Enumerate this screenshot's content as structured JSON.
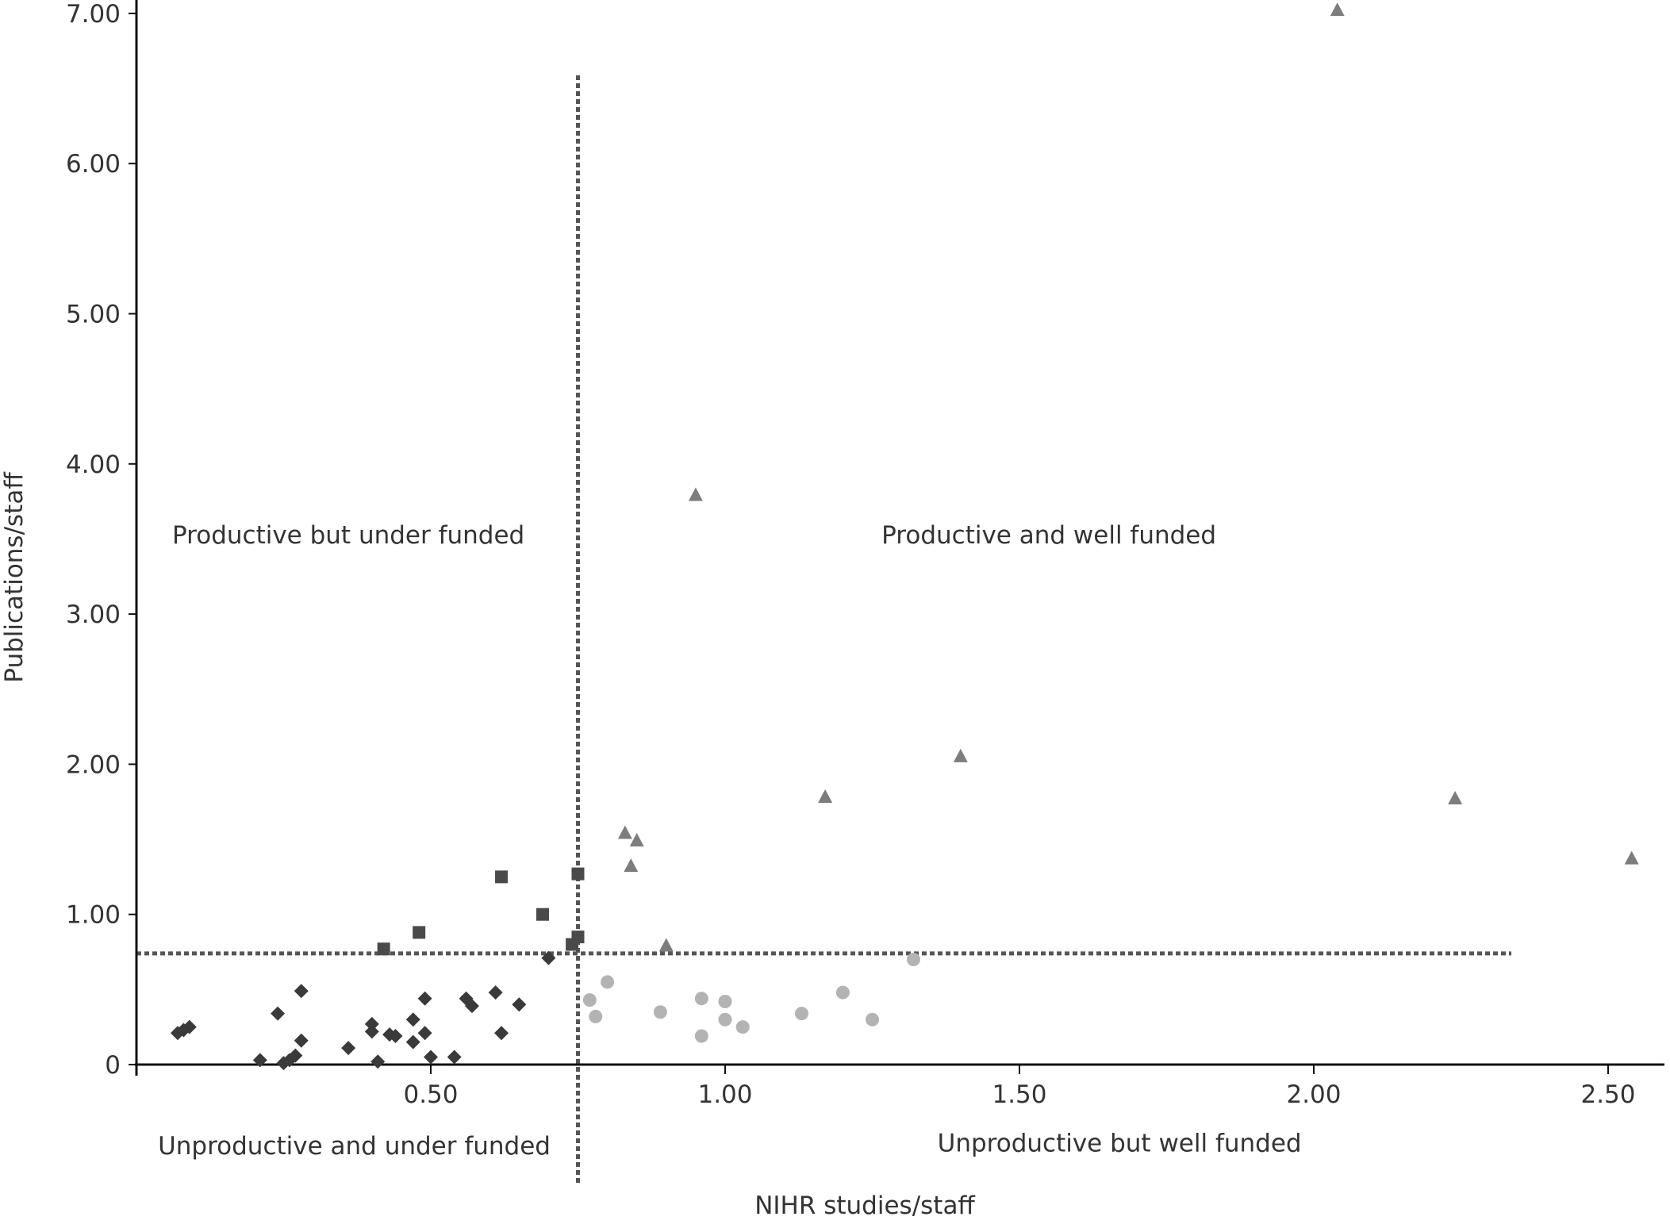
{
  "chart_data": {
    "type": "scatter",
    "title": "",
    "xlabel": "NIHR studies/staff",
    "ylabel": "Publications/staff",
    "xlim": [
      0,
      2.6
    ],
    "ylim": [
      0,
      7
    ],
    "x_ticks": [
      {
        "value": 0.5,
        "label": "0.50"
      },
      {
        "value": 1.0,
        "label": "1.00"
      },
      {
        "value": 1.5,
        "label": "1.50"
      },
      {
        "value": 2.0,
        "label": "2.00"
      },
      {
        "value": 2.5,
        "label": "2.50"
      }
    ],
    "y_ticks": [
      {
        "value": 0,
        "label": "0"
      },
      {
        "value": 1,
        "label": "1.00"
      },
      {
        "value": 2,
        "label": "2.00"
      },
      {
        "value": 3,
        "label": "3.00"
      },
      {
        "value": 4,
        "label": "4.00"
      },
      {
        "value": 5,
        "label": "5.00"
      },
      {
        "value": 6,
        "label": "6.00"
      },
      {
        "value": 7,
        "label": "7.00"
      }
    ],
    "reference_lines": {
      "x": 0.75,
      "y": 0.74
    },
    "quadrant_labels": [
      {
        "text": "Productive but under funded",
        "x": 0.36,
        "y": 3.53
      },
      {
        "text": "Productive and well funded",
        "x": 1.55,
        "y": 3.53
      },
      {
        "text": "Unproductive and under funded",
        "x": 0.37,
        "y": -0.54
      },
      {
        "text": "Unproductive but well funded",
        "x": 1.67,
        "y": -0.52
      }
    ],
    "grid": false,
    "legend": "none",
    "series": [
      {
        "marker": "diamond",
        "color": "#3a3a3a",
        "points": [
          [
            0.07,
            0.21
          ],
          [
            0.08,
            0.23
          ],
          [
            0.09,
            0.25
          ],
          [
            0.21,
            0.03
          ],
          [
            0.24,
            0.34
          ],
          [
            0.25,
            0.01
          ],
          [
            0.26,
            0.03
          ],
          [
            0.27,
            0.06
          ],
          [
            0.28,
            0.16
          ],
          [
            0.28,
            0.49
          ],
          [
            0.36,
            0.11
          ],
          [
            0.4,
            0.27
          ],
          [
            0.4,
            0.22
          ],
          [
            0.41,
            0.02
          ],
          [
            0.43,
            0.2
          ],
          [
            0.44,
            0.19
          ],
          [
            0.47,
            0.3
          ],
          [
            0.47,
            0.15
          ],
          [
            0.49,
            0.21
          ],
          [
            0.49,
            0.44
          ],
          [
            0.5,
            0.05
          ],
          [
            0.54,
            0.05
          ],
          [
            0.56,
            0.44
          ],
          [
            0.57,
            0.39
          ],
          [
            0.61,
            0.48
          ],
          [
            0.62,
            0.21
          ],
          [
            0.65,
            0.4
          ],
          [
            0.7,
            0.71
          ]
        ]
      },
      {
        "marker": "square",
        "color": "#4a4a4a",
        "points": [
          [
            0.42,
            0.77
          ],
          [
            0.48,
            0.88
          ],
          [
            0.62,
            1.25
          ],
          [
            0.69,
            1.0
          ],
          [
            0.74,
            0.8
          ],
          [
            0.75,
            0.85
          ],
          [
            0.75,
            1.27
          ]
        ]
      },
      {
        "marker": "triangle",
        "color": "#7d7d7d",
        "points": [
          [
            0.83,
            1.54
          ],
          [
            0.84,
            1.32
          ],
          [
            0.85,
            1.49
          ],
          [
            0.9,
            0.79
          ],
          [
            0.95,
            3.79
          ],
          [
            1.17,
            1.78
          ],
          [
            1.4,
            2.05
          ],
          [
            2.04,
            7.02
          ],
          [
            2.24,
            1.77
          ],
          [
            2.54,
            1.37
          ]
        ]
      },
      {
        "marker": "circle",
        "color": "#b3b3b3",
        "points": [
          [
            0.77,
            0.43
          ],
          [
            0.78,
            0.32
          ],
          [
            0.8,
            0.55
          ],
          [
            0.89,
            0.35
          ],
          [
            0.96,
            0.44
          ],
          [
            0.96,
            0.19
          ],
          [
            1.0,
            0.42
          ],
          [
            1.0,
            0.3
          ],
          [
            1.03,
            0.25
          ],
          [
            1.13,
            0.34
          ],
          [
            1.2,
            0.48
          ],
          [
            1.25,
            0.3
          ],
          [
            1.32,
            0.7
          ]
        ]
      }
    ]
  }
}
